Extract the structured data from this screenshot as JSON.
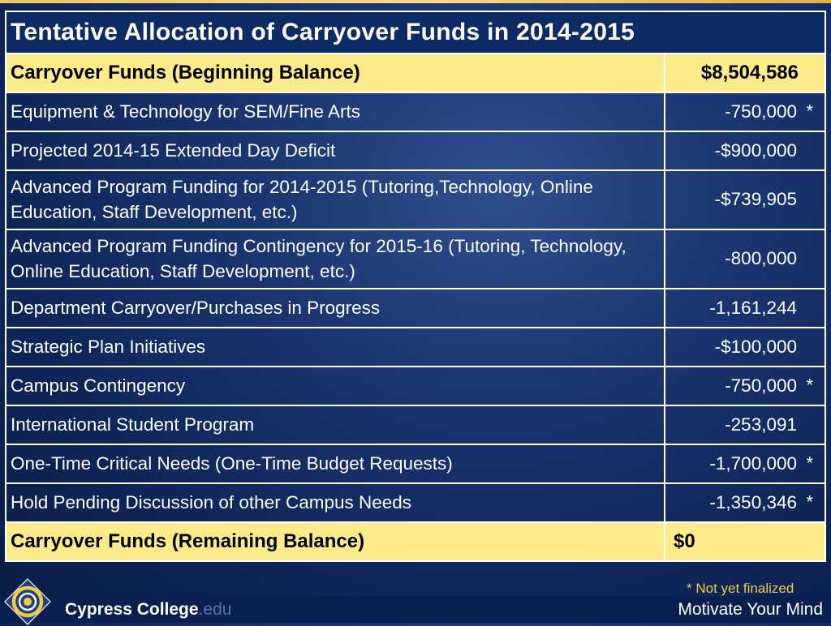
{
  "title": "Tentative Allocation of Carryover Funds in 2014-2015",
  "beginning": {
    "label": "Carryover Funds (Beginning Balance)",
    "amount": "$8,504,586"
  },
  "items": [
    {
      "label": "Equipment & Technology for SEM/Fine Arts",
      "amount": "-750,000",
      "star": "*"
    },
    {
      "label": "Projected 2014-15 Extended Day Deficit",
      "amount": "-$900,000",
      "star": ""
    },
    {
      "label": "Advanced Program Funding for 2014-2015 (Tutoring,Technology, Online Education, Staff Development, etc.)",
      "amount": "-$739,905",
      "star": ""
    },
    {
      "label": "Advanced Program Funding Contingency for 2015-16 (Tutoring, Technology, Online Education, Staff Development, etc.)",
      "amount": "-800,000",
      "star": ""
    },
    {
      "label": "Department Carryover/Purchases in Progress",
      "amount": "-1,161,244",
      "star": ""
    },
    {
      "label": "Strategic Plan Initiatives",
      "amount": "-$100,000",
      "star": ""
    },
    {
      "label": "Campus Contingency",
      "amount": "-750,000",
      "star": "*"
    },
    {
      "label": "International Student Program",
      "amount": "-253,091",
      "star": ""
    },
    {
      "label": "One-Time Critical Needs (One-Time Budget Requests)",
      "amount": "-1,700,000",
      "star": "*"
    },
    {
      "label": "Hold Pending Discussion of other Campus Needs",
      "amount": "-1,350,346",
      "star": "*"
    }
  ],
  "remaining": {
    "label": "Carryover Funds (Remaining Balance)",
    "amount": "$0"
  },
  "footnote": "* Not yet finalized",
  "footer": {
    "college": "Cypress College",
    "edu": ".edu",
    "tagline": "Motivate Your Mind"
  },
  "colors": {
    "header_bg": "#0c2a63",
    "highlight_row": "#fbeb8a",
    "footnote": "#f0c84a",
    "background": "#1a3570"
  },
  "icons": {
    "logo": "cypress-college-swirl-logo"
  }
}
